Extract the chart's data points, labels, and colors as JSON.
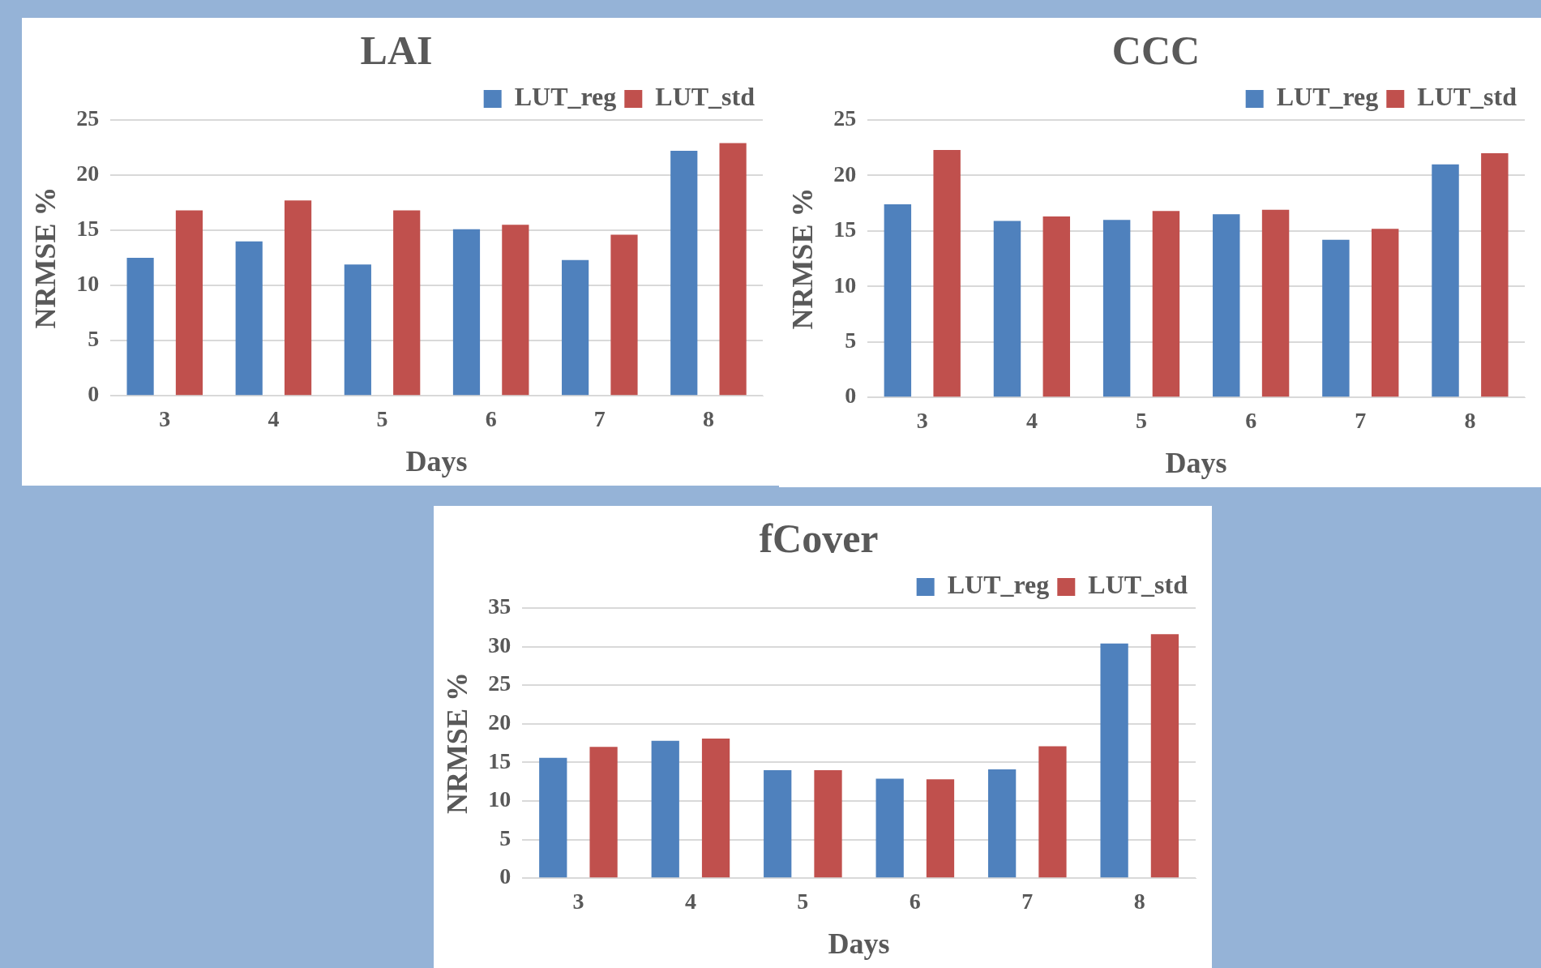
{
  "chart_data": [
    {
      "type": "bar",
      "title": "LAI",
      "xlabel": "Days",
      "ylabel": "NRMSE %",
      "categories": [
        "3",
        "4",
        "5",
        "6",
        "7",
        "8"
      ],
      "series": [
        {
          "name": "LUT_reg",
          "color": "#4f81bd",
          "values": [
            12.5,
            14.0,
            11.9,
            15.1,
            12.3,
            22.2
          ]
        },
        {
          "name": "LUT_std",
          "color": "#c0504d",
          "values": [
            16.8,
            17.7,
            16.8,
            15.5,
            14.6,
            22.9
          ]
        }
      ],
      "ylim": [
        0,
        25
      ],
      "yticks": [
        0,
        5,
        10,
        15,
        20,
        25
      ],
      "grid": "y",
      "legend": "top right"
    },
    {
      "type": "bar",
      "title": "CCC",
      "xlabel": "Days",
      "ylabel": "NRMSE %",
      "categories": [
        "3",
        "4",
        "5",
        "6",
        "7",
        "8"
      ],
      "series": [
        {
          "name": "LUT_reg",
          "color": "#4f81bd",
          "values": [
            17.4,
            15.9,
            16.0,
            16.5,
            14.2,
            21.0
          ]
        },
        {
          "name": "LUT_std",
          "color": "#c0504d",
          "values": [
            22.3,
            16.3,
            16.8,
            16.9,
            15.2,
            22.0
          ]
        }
      ],
      "ylim": [
        0,
        25
      ],
      "yticks": [
        0,
        5,
        10,
        15,
        20,
        25
      ],
      "grid": "y",
      "legend": "top right"
    },
    {
      "type": "bar",
      "title": "fCover",
      "xlabel": "Days",
      "ylabel": "NRMSE %",
      "categories": [
        "3",
        "4",
        "5",
        "6",
        "7",
        "8"
      ],
      "series": [
        {
          "name": "LUT_reg",
          "color": "#4f81bd",
          "values": [
            15.6,
            17.8,
            14.0,
            12.9,
            14.1,
            30.4
          ]
        },
        {
          "name": "LUT_std",
          "color": "#c0504d",
          "values": [
            17.0,
            18.1,
            14.0,
            12.8,
            17.1,
            31.6
          ]
        }
      ],
      "ylim": [
        0,
        35
      ],
      "yticks": [
        0,
        5,
        10,
        15,
        20,
        25,
        30,
        35
      ],
      "grid": "y",
      "legend": "top right"
    }
  ]
}
